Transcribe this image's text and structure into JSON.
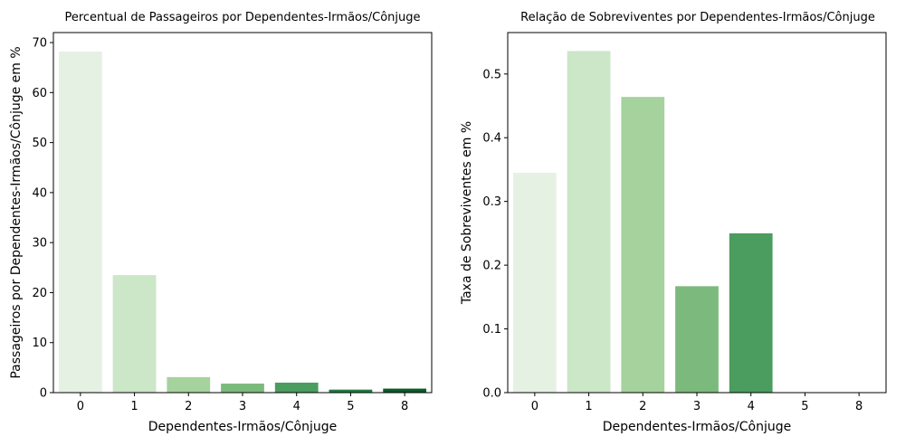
{
  "chart_data": [
    {
      "type": "bar",
      "title": "Percentual de Passageiros por Dependentes-Irmãos/Cônjuge",
      "xlabel": "Dependentes-Irmãos/Cônjuge",
      "ylabel": "Passageiros por Dependentes-Irmãos/Cônjuge em %",
      "categories": [
        "0",
        "1",
        "2",
        "3",
        "4",
        "5",
        "8"
      ],
      "values": [
        68.2,
        23.5,
        3.1,
        1.8,
        2.0,
        0.6,
        0.8
      ],
      "ylim": [
        0,
        72
      ],
      "yticks": [
        "0",
        "10",
        "20",
        "30",
        "40",
        "50",
        "60",
        "70"
      ],
      "grid": false,
      "colors": [
        "#e5f2e3",
        "#cce6c8",
        "#a5d29d",
        "#7bba7c",
        "#4b9c5f",
        "#227c3f",
        "#0b5b29"
      ]
    },
    {
      "type": "bar",
      "title": "Relação de Sobreviventes por Dependentes-Irmãos/Cônjuge",
      "xlabel": "Dependentes-Irmãos/Cônjuge",
      "ylabel": "Taxa de Sobreviventes em %",
      "categories": [
        "0",
        "1",
        "2",
        "3",
        "4",
        "5",
        "8"
      ],
      "values": [
        0.345,
        0.536,
        0.464,
        0.167,
        0.25,
        0.0,
        0.0
      ],
      "ylim": [
        0,
        0.565
      ],
      "yticks": [
        "0.0",
        "0.1",
        "0.2",
        "0.3",
        "0.4",
        "0.5"
      ],
      "grid": false,
      "colors": [
        "#e5f2e3",
        "#cce6c8",
        "#a5d29d",
        "#7bba7c",
        "#4b9c5f",
        "#227c3f",
        "#0b5b29"
      ]
    }
  ]
}
